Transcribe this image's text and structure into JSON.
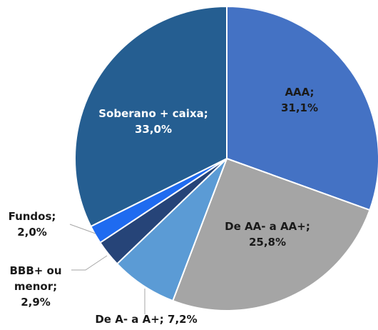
{
  "chart_data": {
    "type": "pie",
    "categories": [
      "AAA;",
      "De AA- a AA+;",
      "De A- a A+;",
      "BBB+ ou menor;",
      "Fundos;",
      "Soberano + caixa;"
    ],
    "values": [
      31.1,
      25.8,
      7.2,
      2.9,
      2.0,
      33.0
    ],
    "value_labels": [
      "31,1%",
      "25,8%",
      "7,2%",
      "2,9%",
      "2,0%",
      "33,0%"
    ],
    "colors": [
      "#4472c4",
      "#a5a5a5",
      "#5b9bd5",
      "#264478",
      "#1f6bf0",
      "#255e91"
    ]
  }
}
